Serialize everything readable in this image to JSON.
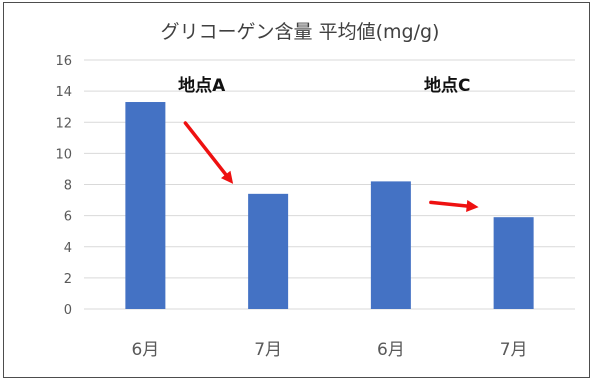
{
  "chart_data": {
    "type": "bar",
    "title": "グリコーゲン含量 平均値(mg/g)",
    "categories": [
      "6月",
      "7月",
      "6月",
      "7月"
    ],
    "values": [
      13.3,
      7.4,
      8.2,
      5.9
    ],
    "ylim": [
      0,
      16
    ],
    "yticks": [
      0,
      2,
      4,
      6,
      8,
      10,
      12,
      14,
      16
    ],
    "grid": true,
    "bar_color": "#4472c4",
    "gridline_color": "#d9d9d9",
    "annotations": [
      {
        "text": "地点A",
        "group": [
          0,
          1
        ]
      },
      {
        "text": "地点C",
        "group": [
          2,
          3
        ]
      }
    ],
    "arrows": [
      {
        "from_category": 0,
        "to_category": 1,
        "color": "#ee1111"
      },
      {
        "from_category": 2,
        "to_category": 3,
        "color": "#ee1111"
      }
    ]
  }
}
